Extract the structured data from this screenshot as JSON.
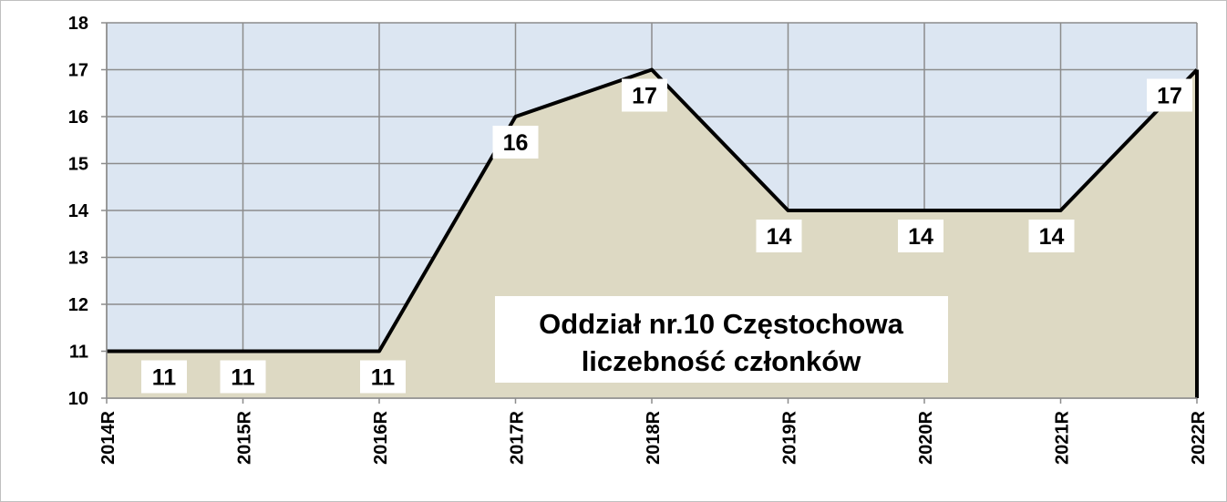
{
  "chart_data": {
    "type": "area",
    "annotation": [
      "Oddział nr.10 Częstochowa",
      "liczebność członków"
    ],
    "categories": [
      "2014R",
      "2015R",
      "2016R",
      "2017R",
      "2018R",
      "2019R",
      "2020R",
      "2021R",
      "2022R"
    ],
    "values": [
      11,
      11,
      11,
      16,
      17,
      14,
      14,
      14,
      17
    ],
    "color": "#ddd9c3",
    "line_color": "#000000",
    "background": "#dce6f2",
    "ylim": [
      10,
      18
    ],
    "yticks": [
      10,
      11,
      12,
      13,
      14,
      15,
      16,
      17,
      18
    ],
    "grid": true
  }
}
